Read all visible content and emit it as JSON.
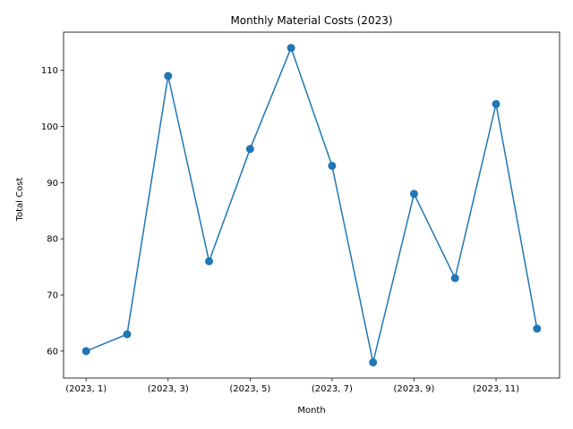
{
  "chart_data": {
    "type": "line",
    "title": "Monthly Material Costs (2023)",
    "xlabel": "Month",
    "ylabel": "Total Cost",
    "categories": [
      "(2023, 1)",
      "(2023, 2)",
      "(2023, 3)",
      "(2023, 4)",
      "(2023, 5)",
      "(2023, 6)",
      "(2023, 7)",
      "(2023, 8)",
      "(2023, 9)",
      "(2023, 10)",
      "(2023, 11)",
      "(2023, 12)"
    ],
    "x_tick_labels": [
      "(2023, 1)",
      "(2023, 3)",
      "(2023, 5)",
      "(2023, 7)",
      "(2023, 9)",
      "(2023, 11)"
    ],
    "values": [
      60,
      63,
      109,
      76,
      96,
      114,
      93,
      58,
      88,
      73,
      104,
      64
    ],
    "ylim": [
      55.2,
      116.8
    ],
    "y_ticks": [
      60,
      70,
      80,
      90,
      100,
      110
    ],
    "grid": false,
    "legend": "none",
    "line_color": "#1f77b4",
    "marker": "circle"
  }
}
